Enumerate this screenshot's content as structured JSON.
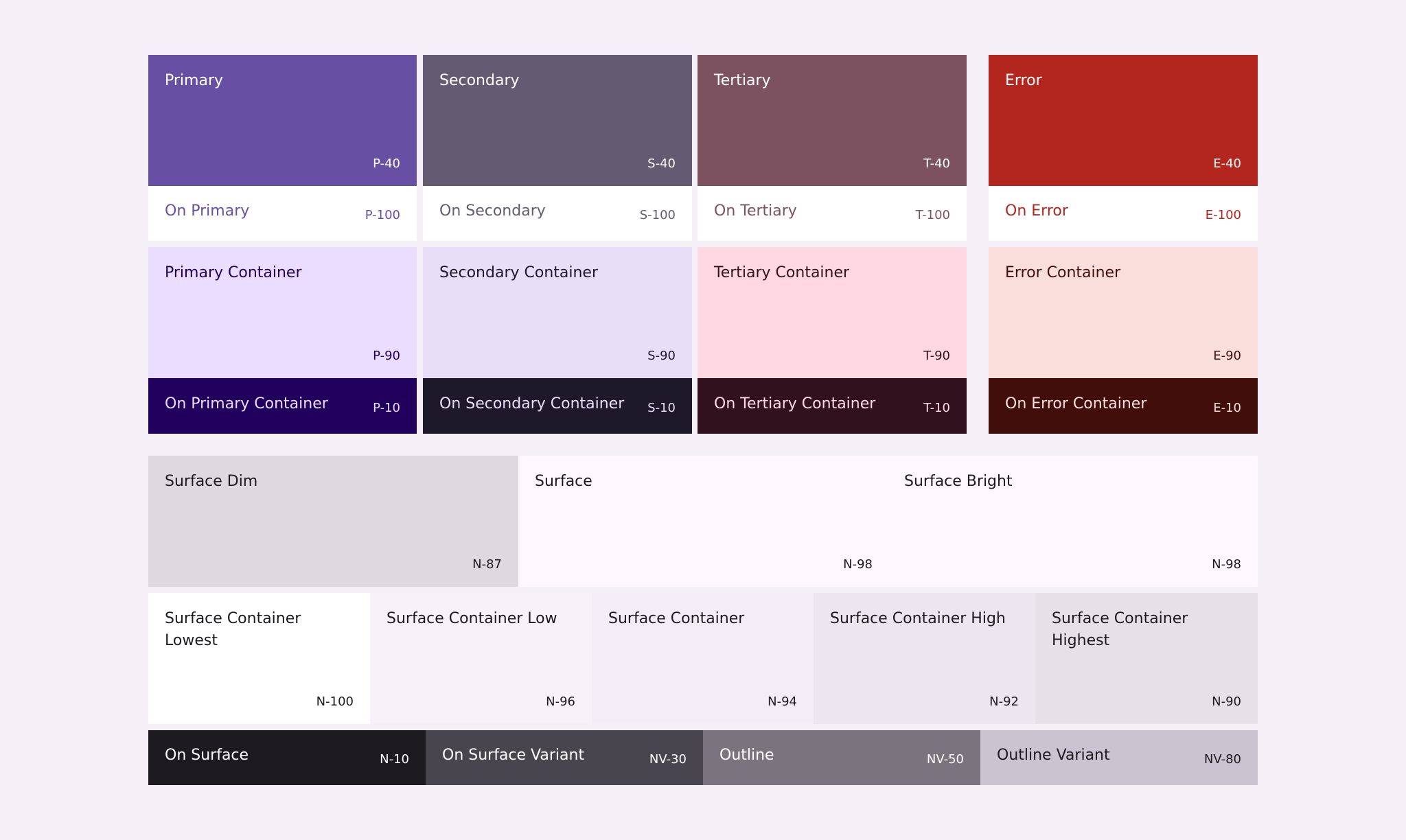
{
  "groups": {
    "primary": {
      "name": "Primary",
      "code": "P-40",
      "bg": "#6750A4",
      "fg": "#FFFFFF",
      "on_name": "On Primary",
      "on_code": "P-100",
      "on_bg": "#FFFFFF",
      "on_fg": "#6750A4",
      "c_name": "Primary Container",
      "c_code": "P-90",
      "c_bg": "#EADDFF",
      "c_fg": "#21005D",
      "oc_name": "On Primary Container",
      "oc_code": "P-10",
      "oc_bg": "#21005D",
      "oc_fg": "#EADDFF"
    },
    "secondary": {
      "name": "Secondary",
      "code": "S-40",
      "bg": "#625B71",
      "fg": "#FFFFFF",
      "on_name": "On Secondary",
      "on_code": "S-100",
      "on_bg": "#FFFFFF",
      "on_fg": "#625B71",
      "c_name": "Secondary Container",
      "c_code": "S-90",
      "c_bg": "#E8DEF8",
      "c_fg": "#1D192B",
      "oc_name": "On Secondary Container",
      "oc_code": "S-10",
      "oc_bg": "#1D192B",
      "oc_fg": "#E8DEF8"
    },
    "tertiary": {
      "name": "Tertiary",
      "code": "T-40",
      "bg": "#7D5260",
      "fg": "#FFFFFF",
      "on_name": "On Tertiary",
      "on_code": "T-100",
      "on_bg": "#FFFFFF",
      "on_fg": "#7D5260",
      "c_name": "Tertiary Container",
      "c_code": "T-90",
      "c_bg": "#FFD8E4",
      "c_fg": "#31111D",
      "oc_name": "On Tertiary Container",
      "oc_code": "T-10",
      "oc_bg": "#31111D",
      "oc_fg": "#FFD8E4"
    },
    "error": {
      "name": "Error",
      "code": "E-40",
      "bg": "#B3261E",
      "fg": "#FFFFFF",
      "on_name": "On Error",
      "on_code": "E-100",
      "on_bg": "#FFFFFF",
      "on_fg": "#B3261E",
      "c_name": "Error Container",
      "c_code": "E-90",
      "c_bg": "#F9DEDC",
      "c_fg": "#410E0B",
      "oc_name": "On Error Container",
      "oc_code": "E-10",
      "oc_bg": "#410E0B",
      "oc_fg": "#F9DEDC"
    }
  },
  "surface": {
    "dim": {
      "name": "Surface Dim",
      "code": "N-87",
      "bg": "#DED8E1"
    },
    "main": {
      "name": "Surface",
      "code": "N-98",
      "bg": "#FEF7FF"
    },
    "bright": {
      "name": "Surface Bright",
      "code": "N-98"
    },
    "text_color": "#1D1B20"
  },
  "containers": [
    {
      "name": "Surface Container Lowest",
      "code": "N-100",
      "bg": "#FFFFFF"
    },
    {
      "name": "Surface Container Low",
      "code": "N-96",
      "bg": "#F7F2FA"
    },
    {
      "name": "Surface Container",
      "code": "N-94",
      "bg": "#F3EDF7"
    },
    {
      "name": "Surface Container High",
      "code": "N-92",
      "bg": "#ECE6F0"
    },
    {
      "name": "Surface Container Highest",
      "code": "N-90",
      "bg": "#E6E0E9"
    }
  ],
  "bottom": [
    {
      "name": "On Surface",
      "code": "N-10",
      "bg": "#1D1B20",
      "fg": "#FFFFFF"
    },
    {
      "name": "On Surface Variant",
      "code": "NV-30",
      "bg": "#49454F",
      "fg": "#FFFFFF"
    },
    {
      "name": "Outline",
      "code": "NV-50",
      "bg": "#79747E",
      "fg": "#FFFFFF"
    },
    {
      "name": "Outline Variant",
      "code": "NV-80",
      "bg": "#CAC4D0",
      "fg": "#1D1B20"
    }
  ]
}
